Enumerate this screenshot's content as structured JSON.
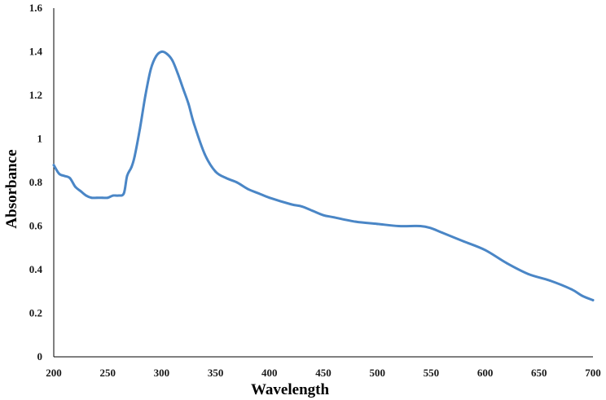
{
  "chart_data": {
    "type": "line",
    "title": "",
    "xlabel": "Wavelength",
    "ylabel": "Absorbance",
    "xlim": [
      200,
      700
    ],
    "ylim": [
      0,
      1.6
    ],
    "grid": false,
    "x_ticks": [
      "200",
      "250",
      "300",
      "350",
      "400",
      "450",
      "500",
      "550",
      "600",
      "650",
      "700"
    ],
    "y_ticks": [
      "0",
      "0.2",
      "0.4",
      "0.6",
      "0.8",
      "1",
      "1.2",
      "1.4",
      "1.6"
    ],
    "series": [
      {
        "color": "#4a86c6",
        "x": [
          200,
          205,
          210,
          215,
          220,
          225,
          230,
          235,
          240,
          245,
          250,
          255,
          260,
          265,
          268,
          272,
          275,
          280,
          285,
          290,
          295,
          300,
          305,
          310,
          315,
          320,
          325,
          330,
          340,
          350,
          360,
          370,
          380,
          390,
          400,
          420,
          430,
          440,
          450,
          460,
          480,
          500,
          520,
          540,
          550,
          560,
          580,
          600,
          620,
          640,
          660,
          680,
          690,
          700
        ],
        "y": [
          0.88,
          0.84,
          0.83,
          0.82,
          0.78,
          0.76,
          0.74,
          0.73,
          0.73,
          0.73,
          0.73,
          0.74,
          0.74,
          0.75,
          0.83,
          0.87,
          0.92,
          1.05,
          1.2,
          1.32,
          1.38,
          1.4,
          1.39,
          1.36,
          1.3,
          1.23,
          1.16,
          1.07,
          0.93,
          0.85,
          0.82,
          0.8,
          0.77,
          0.75,
          0.73,
          0.7,
          0.69,
          0.67,
          0.65,
          0.64,
          0.62,
          0.61,
          0.6,
          0.6,
          0.59,
          0.57,
          0.53,
          0.49,
          0.43,
          0.38,
          0.35,
          0.31,
          0.28,
          0.26
        ]
      }
    ]
  }
}
